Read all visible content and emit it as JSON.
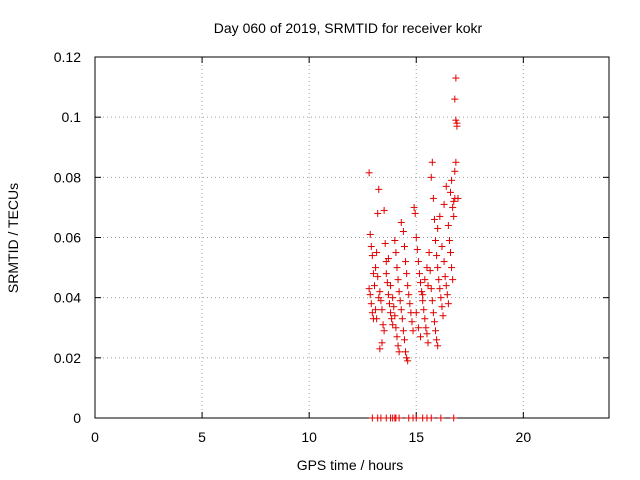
{
  "chart_data": {
    "type": "scatter",
    "title": "Day 060 of 2019, SRMTID for receiver kokr",
    "xlabel": "GPS time / hours",
    "ylabel": "SRMTID / TECUs",
    "xlim": [
      0,
      24
    ],
    "ylim": [
      0,
      0.12
    ],
    "x_ticks": [
      0,
      5,
      10,
      15,
      20
    ],
    "x_tick_labels": [
      "0",
      "5",
      "10",
      "15",
      "20"
    ],
    "y_ticks": [
      0,
      0.02,
      0.04,
      0.06,
      0.08,
      0.1,
      0.12
    ],
    "y_tick_labels": [
      "0",
      "0.02",
      "0.04",
      "0.06",
      "0.08",
      "0.1",
      "0.12"
    ],
    "grid": true,
    "marker": "plus",
    "series": [
      {
        "color": "#e00000",
        "points": [
          [
            12.8,
            0.0815
          ],
          [
            12.85,
            0.061
          ],
          [
            12.9,
            0.057
          ],
          [
            12.95,
            0.054
          ],
          [
            13.0,
            0.048
          ],
          [
            12.8,
            0.043
          ],
          [
            12.85,
            0.041
          ],
          [
            12.9,
            0.038
          ],
          [
            12.95,
            0.035
          ],
          [
            13.0,
            0.033
          ],
          [
            13.05,
            0.044
          ],
          [
            13.1,
            0.05
          ],
          [
            13.15,
            0.055
          ],
          [
            13.2,
            0.047
          ],
          [
            13.25,
            0.04
          ],
          [
            13.1,
            0.036
          ],
          [
            13.15,
            0.033
          ],
          [
            13.2,
            0.068
          ],
          [
            13.25,
            0.076
          ],
          [
            13.3,
            0.042
          ],
          [
            13.35,
            0.039
          ],
          [
            13.4,
            0.036
          ],
          [
            13.45,
            0.031
          ],
          [
            13.5,
            0.029
          ],
          [
            13.3,
            0.023
          ],
          [
            13.4,
            0.025
          ],
          [
            13.5,
            0.069
          ],
          [
            13.55,
            0.058
          ],
          [
            13.6,
            0.052
          ],
          [
            13.65,
            0.045
          ],
          [
            13.7,
            0.041
          ],
          [
            13.75,
            0.038
          ],
          [
            13.8,
            0.035
          ],
          [
            13.85,
            0.033
          ],
          [
            13.9,
            0.031
          ],
          [
            13.6,
            0.048
          ],
          [
            13.7,
            0.053
          ],
          [
            13.8,
            0.044
          ],
          [
            13.9,
            0.04
          ],
          [
            13.95,
            0.037
          ],
          [
            14.0,
            0.034
          ],
          [
            14.05,
            0.03
          ],
          [
            14.1,
            0.027
          ],
          [
            14.15,
            0.024
          ],
          [
            14.2,
            0.022
          ],
          [
            14.0,
            0.059
          ],
          [
            14.05,
            0.055
          ],
          [
            14.1,
            0.05
          ],
          [
            14.15,
            0.046
          ],
          [
            14.2,
            0.042
          ],
          [
            14.25,
            0.039
          ],
          [
            14.3,
            0.036
          ],
          [
            14.35,
            0.033
          ],
          [
            14.4,
            0.029
          ],
          [
            14.45,
            0.026
          ],
          [
            14.5,
            0.022
          ],
          [
            14.55,
            0.02
          ],
          [
            14.6,
            0.019
          ],
          [
            14.3,
            0.065
          ],
          [
            14.4,
            0.062
          ],
          [
            14.45,
            0.057
          ],
          [
            14.5,
            0.052
          ],
          [
            14.55,
            0.048
          ],
          [
            14.6,
            0.044
          ],
          [
            14.65,
            0.041
          ],
          [
            14.7,
            0.038
          ],
          [
            14.75,
            0.035
          ],
          [
            14.8,
            0.032
          ],
          [
            14.85,
            0.029
          ],
          [
            14.9,
            0.07
          ],
          [
            14.95,
            0.068
          ],
          [
            15.0,
            0.06
          ],
          [
            15.05,
            0.056
          ],
          [
            15.1,
            0.052
          ],
          [
            15.15,
            0.048
          ],
          [
            15.2,
            0.045
          ],
          [
            15.25,
            0.042
          ],
          [
            15.3,
            0.039
          ],
          [
            15.35,
            0.036
          ],
          [
            15.4,
            0.033
          ],
          [
            15.45,
            0.03
          ],
          [
            15.5,
            0.028
          ],
          [
            15.55,
            0.025
          ],
          [
            15.0,
            0.035
          ],
          [
            15.1,
            0.03
          ],
          [
            15.2,
            0.027
          ],
          [
            15.3,
            0.041
          ],
          [
            15.4,
            0.046
          ],
          [
            15.5,
            0.05
          ],
          [
            15.55,
            0.044
          ],
          [
            15.6,
            0.055
          ],
          [
            15.65,
            0.049
          ],
          [
            15.7,
            0.043
          ],
          [
            15.75,
            0.039
          ],
          [
            15.8,
            0.035
          ],
          [
            15.85,
            0.032
          ],
          [
            15.9,
            0.029
          ],
          [
            15.95,
            0.026
          ],
          [
            16.0,
            0.024
          ],
          [
            15.7,
            0.08
          ],
          [
            15.75,
            0.085
          ],
          [
            15.8,
            0.073
          ],
          [
            15.85,
            0.066
          ],
          [
            15.9,
            0.059
          ],
          [
            15.95,
            0.054
          ],
          [
            16.0,
            0.05
          ],
          [
            16.05,
            0.046
          ],
          [
            16.1,
            0.043
          ],
          [
            16.15,
            0.04
          ],
          [
            16.2,
            0.037
          ],
          [
            16.25,
            0.034
          ],
          [
            16.0,
            0.063
          ],
          [
            16.1,
            0.067
          ],
          [
            16.2,
            0.057
          ],
          [
            16.3,
            0.052
          ],
          [
            16.35,
            0.047
          ],
          [
            16.4,
            0.044
          ],
          [
            16.45,
            0.041
          ],
          [
            16.5,
            0.038
          ],
          [
            16.3,
            0.071
          ],
          [
            16.4,
            0.077
          ],
          [
            16.5,
            0.064
          ],
          [
            16.55,
            0.059
          ],
          [
            16.6,
            0.055
          ],
          [
            16.65,
            0.05
          ],
          [
            16.7,
            0.046
          ],
          [
            16.75,
            0.072
          ],
          [
            16.8,
            0.082
          ],
          [
            16.85,
            0.085
          ],
          [
            16.6,
            0.075
          ],
          [
            16.65,
            0.079
          ],
          [
            16.7,
            0.07
          ],
          [
            16.75,
            0.067
          ],
          [
            16.8,
            0.073
          ],
          [
            16.85,
            0.099
          ],
          [
            16.9,
            0.098
          ],
          [
            16.8,
            0.106
          ],
          [
            16.85,
            0.113
          ],
          [
            16.9,
            0.097
          ],
          [
            16.95,
            0.073
          ],
          [
            12.95,
            0.0
          ],
          [
            13.2,
            0.0
          ],
          [
            13.35,
            0.0
          ],
          [
            13.6,
            0.0
          ],
          [
            13.8,
            0.0
          ],
          [
            13.9,
            0.0
          ],
          [
            14.0,
            0.0
          ],
          [
            14.05,
            0.0
          ],
          [
            14.2,
            0.0
          ],
          [
            14.65,
            0.0
          ],
          [
            14.85,
            0.0
          ],
          [
            15.0,
            0.0
          ],
          [
            15.3,
            0.0
          ],
          [
            15.5,
            0.0
          ],
          [
            15.7,
            0.0
          ],
          [
            16.15,
            0.0
          ],
          [
            16.75,
            0.0
          ]
        ]
      }
    ]
  }
}
